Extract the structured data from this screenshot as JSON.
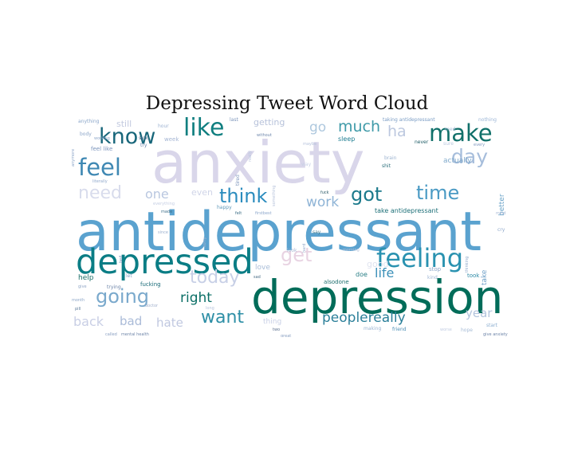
{
  "chart_data": {
    "type": "wordcloud",
    "title": "Depressing Tweet Word Cloud",
    "words": [
      {
        "text": "anxiety",
        "weight": 100,
        "color": "#d9d6ea"
      },
      {
        "text": "antidepressant",
        "weight": 95,
        "color": "#5aa2cf"
      },
      {
        "text": "depression",
        "weight": 80,
        "color": "#016c59"
      },
      {
        "text": "depressed",
        "weight": 60,
        "color": "#0a7d85"
      },
      {
        "text": "feeling",
        "weight": 45,
        "color": "#2a92b0"
      },
      {
        "text": "like",
        "weight": 42,
        "color": "#117f80"
      },
      {
        "text": "make",
        "weight": 40,
        "color": "#11706a"
      },
      {
        "text": "know",
        "weight": 38,
        "color": "#18667a"
      },
      {
        "text": "feel",
        "weight": 40,
        "color": "#3f88b3"
      },
      {
        "text": "day",
        "weight": 35,
        "color": "#a6bddb"
      },
      {
        "text": "think",
        "weight": 34,
        "color": "#2b8cbe"
      },
      {
        "text": "got",
        "weight": 33,
        "color": "#1c7a8c"
      },
      {
        "text": "time",
        "weight": 33,
        "color": "#4a9ac4"
      },
      {
        "text": "going",
        "weight": 33,
        "color": "#7aa9cc"
      },
      {
        "text": "get",
        "weight": 33,
        "color": "#e8d3e2"
      },
      {
        "text": "today",
        "weight": 31,
        "color": "#c7cfe6"
      },
      {
        "text": "want",
        "weight": 30,
        "color": "#2e8fa6"
      },
      {
        "text": "need",
        "weight": 30,
        "color": "#d8dcec"
      },
      {
        "text": "much",
        "weight": 26,
        "color": "#3e9aa8"
      },
      {
        "text": "go",
        "weight": 24,
        "color": "#aec8de"
      },
      {
        "text": "work",
        "weight": 24,
        "color": "#8fb4d6"
      },
      {
        "text": "one",
        "weight": 22,
        "color": "#b9c7e0"
      },
      {
        "text": "right",
        "weight": 24,
        "color": "#0b6f66"
      },
      {
        "text": "peoplereally",
        "weight": 24,
        "color": "#2b7f99"
      },
      {
        "text": "life",
        "weight": 22,
        "color": "#3a8fb8"
      },
      {
        "text": "back",
        "weight": 22,
        "color": "#c9cfe5"
      },
      {
        "text": "bad",
        "weight": 21,
        "color": "#aabbd8"
      },
      {
        "text": "hate",
        "weight": 21,
        "color": "#c0c8e0"
      },
      {
        "text": "year",
        "weight": 21,
        "color": "#b3c4dd"
      },
      {
        "text": "ha",
        "weight": 26,
        "color": "#bcc8df"
      },
      {
        "text": "getting",
        "weight": 15,
        "color": "#b7c2da"
      },
      {
        "text": "still",
        "weight": 15,
        "color": "#c2c9df"
      },
      {
        "text": "even",
        "weight": 15,
        "color": "#d0d5e8"
      },
      {
        "text": "love",
        "weight": 13,
        "color": "#a9bdd8"
      },
      {
        "text": "good",
        "weight": 15,
        "color": "#dfe3ef"
      },
      {
        "text": "thing",
        "weight": 13,
        "color": "#c9d0e6"
      },
      {
        "text": "help",
        "weight": 13,
        "color": "#1b6f68"
      },
      {
        "text": "better",
        "weight": 13,
        "color": "#6aa3c8"
      },
      {
        "text": "take",
        "weight": 13,
        "color": "#6fa0c8"
      },
      {
        "text": "actually",
        "weight": 12,
        "color": "#7ea8ca"
      },
      {
        "text": "take antidepressant",
        "weight": 11,
        "color": "#1c6f77"
      },
      {
        "text": "sleep",
        "weight": 11,
        "color": "#1e7d91"
      },
      {
        "text": "week",
        "weight": 10,
        "color": "#a4b5d3"
      },
      {
        "text": "feel like",
        "weight": 10,
        "color": "#7a93bb"
      },
      {
        "text": "doe",
        "weight": 11,
        "color": "#2a7f86"
      },
      {
        "text": "alsodone",
        "weight": 10,
        "color": "#1e6f6f"
      },
      {
        "text": "stop",
        "weight": 10,
        "color": "#8fa8cb"
      },
      {
        "text": "took",
        "weight": 10,
        "color": "#2c8aa5"
      },
      {
        "text": "kind",
        "weight": 9,
        "color": "#9fb5d4"
      },
      {
        "text": "trying",
        "weight": 9,
        "color": "#6f86a9"
      },
      {
        "text": "fucking",
        "weight": 10,
        "color": "#1a6b78"
      },
      {
        "text": "start",
        "weight": 9,
        "color": "#8fb0d1"
      },
      {
        "text": "making",
        "weight": 8,
        "color": "#9cb4d2"
      },
      {
        "text": "friend",
        "weight": 8,
        "color": "#4d8fb5"
      },
      {
        "text": "hope",
        "weight": 8,
        "color": "#a6bbd6"
      },
      {
        "text": "taking antidepressant",
        "weight": 8,
        "color": "#7a9cc4"
      },
      {
        "text": "nothing",
        "weight": 8,
        "color": "#9bb5d6"
      },
      {
        "text": "never",
        "weight": 8,
        "color": "#1b5a64"
      },
      {
        "text": "every",
        "weight": 7,
        "color": "#7f97bf"
      },
      {
        "text": "anything",
        "weight": 8,
        "color": "#8aa6c9"
      },
      {
        "text": "hour",
        "weight": 8,
        "color": "#9eb3d2"
      },
      {
        "text": "body",
        "weight": 8,
        "color": "#8ea7c9"
      },
      {
        "text": "working",
        "weight": 7,
        "color": "#8fa8ca"
      },
      {
        "text": "try",
        "weight": 8,
        "color": "#6f88ad"
      },
      {
        "text": "sick",
        "weight": 8,
        "color": "#5a6f90"
      },
      {
        "text": "literally",
        "weight": 7,
        "color": "#91a9cc"
      },
      {
        "text": "last",
        "weight": 8,
        "color": "#7c95bb"
      },
      {
        "text": "without",
        "weight": 7,
        "color": "#6e87ac"
      },
      {
        "text": "maybe",
        "weight": 7,
        "color": "#b5c2dc"
      },
      {
        "text": "way",
        "weight": 8,
        "color": "#c7d0e5"
      },
      {
        "text": "shit",
        "weight": 9,
        "color": "#2b6f7b"
      },
      {
        "text": "brain",
        "weight": 8,
        "color": "#9cb3d0"
      },
      {
        "text": "med",
        "weight": 8,
        "color": "#a9bcd8"
      },
      {
        "text": "sure",
        "weight": 8,
        "color": "#b9c8de"
      },
      {
        "text": "happy",
        "weight": 8,
        "color": "#5f99ba"
      },
      {
        "text": "made",
        "weight": 7,
        "color": "#3e6f8a"
      },
      {
        "text": "felt",
        "weight": 7,
        "color": "#3b6d85"
      },
      {
        "text": "firstbest",
        "weight": 7,
        "color": "#8ea8cc"
      },
      {
        "text": "fuck",
        "weight": 7,
        "color": "#2c5b68"
      },
      {
        "text": "sad",
        "weight": 7,
        "color": "#4a6d86"
      },
      {
        "text": "say",
        "weight": 8,
        "color": "#3e7b90"
      },
      {
        "text": "look",
        "weight": 8,
        "color": "#a9b9d4"
      },
      {
        "text": "morning",
        "weight": 7,
        "color": "#b7c4dc"
      },
      {
        "text": "sorry",
        "weight": 7,
        "color": "#a3b3d0"
      },
      {
        "text": "since",
        "weight": 7,
        "color": "#9bb0cf"
      },
      {
        "text": "let",
        "weight": 8,
        "color": "#8aa2c6"
      },
      {
        "text": "month",
        "weight": 7,
        "color": "#8da6c8"
      },
      {
        "text": "pill",
        "weight": 7,
        "color": "#5d7b9a"
      },
      {
        "text": "give",
        "weight": 7,
        "color": "#90a6c6"
      },
      {
        "text": "long",
        "weight": 7,
        "color": "#b7c4dd"
      },
      {
        "text": "two",
        "weight": 7,
        "color": "#5b6f8e"
      },
      {
        "text": "cry",
        "weight": 8,
        "color": "#8fa8cb"
      },
      {
        "text": "mind",
        "weight": 7,
        "color": "#a6b7d3"
      },
      {
        "text": "thinking",
        "weight": 7,
        "color": "#8ba6c8"
      },
      {
        "text": "everything",
        "weight": 7,
        "color": "#c5cee3"
      },
      {
        "text": "bed",
        "weight": 7,
        "color": "#7b93ba"
      },
      {
        "text": "tired",
        "weight": 8,
        "color": "#7e95bb"
      },
      {
        "text": "something",
        "weight": 7,
        "color": "#b6c2db"
      },
      {
        "text": "anymore",
        "weight": 6,
        "color": "#8ea7c9"
      },
      {
        "text": "really",
        "weight": 7,
        "color": "#b9c6df"
      },
      {
        "text": "worse",
        "weight": 7,
        "color": "#c2cde3"
      },
      {
        "text": "hard",
        "weight": 6,
        "color": "#9aaecc"
      },
      {
        "text": "mental health",
        "weight": 4,
        "color": "#6f86a9"
      },
      {
        "text": "called",
        "weight": 4,
        "color": "#8aa0c2"
      },
      {
        "text": "give anxiety",
        "weight": 4,
        "color": "#6d84a8"
      },
      {
        "text": "doctor",
        "weight": 4,
        "color": "#a0b0cc"
      },
      {
        "text": "great",
        "weight": 4,
        "color": "#8aa0c2"
      }
    ]
  }
}
